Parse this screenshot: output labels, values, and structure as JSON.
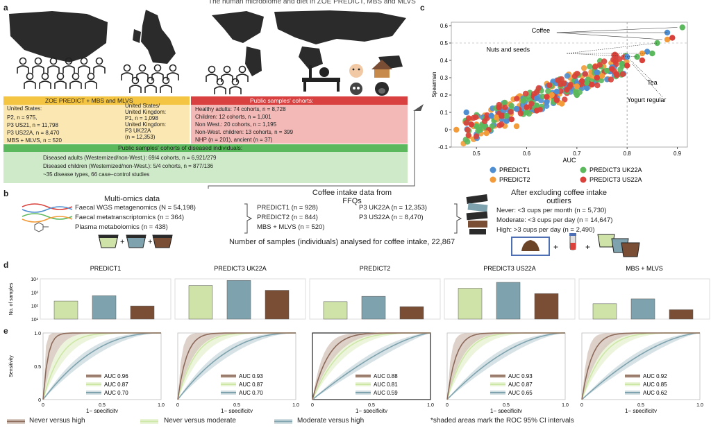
{
  "title": "The human microbiome and diet in ZOE PREDICT, MBS and MLVS",
  "panel_labels": {
    "a": "a",
    "b": "b",
    "c": "c",
    "d": "d",
    "e": "e"
  },
  "panel_a": {
    "zoe_header": "ZOE PREDICT + MBS and MLVS",
    "public_header": "Public samples' cohorts:",
    "zoe_col1": [
      "United States:",
      "P2, n = 975,",
      "P3 US21, n = 11,798",
      "P3 US22A, n = 8,470",
      "MBS + MLVS, n = 520"
    ],
    "zoe_col2": [
      "United States/",
      "United Kingdom:",
      "P1, n = 1,098",
      "United Kingdom:",
      "P3 UK22A",
      "(n = 12,353)"
    ],
    "public_lines": [
      "Healthy adults: 74 cohorts, n = 8,728",
      "Children: 12 cohorts, n = 1,001",
      "Non West.: 20 cohorts, n = 1,195",
      "Non-West. children: 13 cohorts, n = 399",
      "NHP (n = 201), ancient (n = 37)"
    ],
    "diseased_header": "Public samples' cohorts of diseased individuals:",
    "diseased_lines": [
      "Diseased adults (Westernized/non-West.): 69/4 cohorts, n = 6,921/279",
      "Diseased children (Westernized/non-West.): 5/4 cohorts, n = 877/136",
      "~35 disease types, 66 case–control studies"
    ]
  },
  "panel_b": {
    "multiomics_title": "Multi-omics data",
    "multiomics_lines": [
      "Faecal WGS metagenomics (N = 54,198)",
      "Faecal metatranscriptomics (n = 364)",
      "Plasma metabolomics (n = 438)"
    ],
    "ffq_title_1": "Coffee intake data from",
    "ffq_title_2": "FFQs",
    "ffq_col1": [
      "PREDICT1 (n = 928)",
      "PREDICT2 (n = 844)",
      "MBS + MLVS (n = 520)"
    ],
    "ffq_col2": [
      "P3 UK22A (n = 12,353)",
      "P3 US22A (n = 8,470)"
    ],
    "after_title_1": "After excluding coffee intake",
    "after_title_2": "outliers",
    "after_lines": [
      "Never: <3 cups per month (n = 5,730)",
      "Moderate: <3 cups per day (n = 14,647)",
      "High: >3 cups per day (n = 2,490)"
    ],
    "samples_line": "Number of samples (individuals) analysed for coffee intake, 22,867"
  },
  "panel_c": {
    "xlabel": "AUC",
    "ylabel": "Spearman",
    "xticks": [
      "0.5",
      "0.6",
      "0.7",
      "0.8",
      "0.9"
    ],
    "yticks": [
      "-0.1",
      "0",
      "0.1",
      "0.2",
      "0.3",
      "0.4",
      "0.5",
      "0.6"
    ],
    "annotations": [
      "Coffee",
      "Nuts and seeds",
      "Tea",
      "Yogurt regular"
    ],
    "legend": [
      "PREDICT1",
      "PREDICT2",
      "PREDICT3 UK22A",
      "PREDICT3 US22A"
    ],
    "colors": {
      "PREDICT1": "#4f8fd1",
      "PREDICT2": "#f29b38",
      "PREDICT3 UK22A": "#5cb85c",
      "PREDICT3 US22A": "#d9413a"
    }
  },
  "chart_data": [
    {
      "type": "scatter",
      "panel": "c",
      "xlabel": "AUC",
      "ylabel": "Spearman",
      "xlim": [
        0.45,
        0.92
      ],
      "ylim": [
        -0.1,
        0.62
      ],
      "series": [
        {
          "name": "PREDICT1",
          "points": [
            [
              0.48,
              0.1
            ],
            [
              0.53,
              0.08
            ],
            [
              0.58,
              0.12
            ],
            [
              0.62,
              0.18
            ],
            [
              0.66,
              0.22
            ],
            [
              0.7,
              0.27
            ],
            [
              0.74,
              0.33
            ],
            [
              0.77,
              0.36
            ],
            [
              0.8,
              0.42
            ],
            [
              0.84,
              0.45
            ],
            [
              0.88,
              0.56
            ],
            [
              0.56,
              0.05
            ],
            [
              0.64,
              0.16
            ],
            [
              0.72,
              0.24
            ]
          ]
        },
        {
          "name": "PREDICT2",
          "points": [
            [
              0.46,
              0.0
            ],
            [
              0.5,
              0.03
            ],
            [
              0.54,
              0.07
            ],
            [
              0.6,
              0.12
            ],
            [
              0.65,
              0.2
            ],
            [
              0.7,
              0.25
            ],
            [
              0.75,
              0.31
            ],
            [
              0.8,
              0.37
            ],
            [
              0.83,
              0.44
            ],
            [
              0.88,
              0.52
            ],
            [
              0.52,
              -0.02
            ],
            [
              0.58,
              0.02
            ],
            [
              0.67,
              0.15
            ]
          ]
        },
        {
          "name": "PREDICT3 UK22A",
          "points": [
            [
              0.5,
              0.02
            ],
            [
              0.56,
              0.08
            ],
            [
              0.62,
              0.14
            ],
            [
              0.68,
              0.22
            ],
            [
              0.72,
              0.27
            ],
            [
              0.76,
              0.34
            ],
            [
              0.79,
              0.38
            ],
            [
              0.82,
              0.42
            ],
            [
              0.85,
              0.44
            ],
            [
              0.86,
              0.5
            ],
            [
              0.91,
              0.59
            ],
            [
              0.6,
              0.1
            ],
            [
              0.7,
              0.2
            ]
          ]
        },
        {
          "name": "PREDICT3 US22A",
          "points": [
            [
              0.49,
              0.03
            ],
            [
              0.55,
              0.08
            ],
            [
              0.6,
              0.13
            ],
            [
              0.64,
              0.19
            ],
            [
              0.68,
              0.23
            ],
            [
              0.71,
              0.28
            ],
            [
              0.74,
              0.3
            ],
            [
              0.77,
              0.35
            ],
            [
              0.8,
              0.37
            ],
            [
              0.83,
              0.4
            ],
            [
              0.89,
              0.53
            ],
            [
              0.62,
              0.11
            ],
            [
              0.66,
              0.17
            ],
            [
              0.73,
              0.26
            ],
            [
              0.57,
              0.06
            ]
          ]
        }
      ]
    },
    {
      "type": "bar",
      "panel": "d",
      "ylabel": "No. of samples",
      "yscale": "log",
      "ylim": [
        10,
        10000
      ],
      "yticks": [
        "10⁴",
        "10³",
        "10²",
        "10¹"
      ],
      "groups": [
        {
          "name": "PREDICT1",
          "values": [
            220,
            560,
            95
          ]
        },
        {
          "name": "PREDICT3 UK22A",
          "values": [
            3200,
            7600,
            1400
          ]
        },
        {
          "name": "PREDICT2",
          "values": [
            200,
            500,
            85
          ]
        },
        {
          "name": "PREDICT3 US22A",
          "values": [
            2000,
            5500,
            800
          ]
        },
        {
          "name": "MBS + MLVS",
          "values": [
            140,
            320,
            50
          ]
        }
      ],
      "categories": [
        "Never",
        "Moderate",
        "High"
      ],
      "colors": [
        "#cfe3a8",
        "#7fa3ae",
        "#7a4e35"
      ]
    },
    {
      "type": "line",
      "panel": "e",
      "xlabel": "1− specificity",
      "ylabel": "Sensitivity",
      "xticks": [
        "0",
        "0.5",
        "1.0"
      ],
      "yticks": [
        "0",
        "0.5",
        "1.0"
      ],
      "series_names": [
        "Never versus high",
        "Never versus moderate",
        "Moderate versus high"
      ],
      "colors": [
        "#8c6a5a",
        "#cde7a6",
        "#7fa3ae"
      ],
      "band_colors": [
        "#d8c9c0",
        "#e9f3d6",
        "#cfdde0"
      ],
      "panels": [
        {
          "auc": [
            "AUC 0.96",
            "AUC 0.87",
            "AUC 0.70"
          ],
          "values": [
            0.96,
            0.87,
            0.7
          ]
        },
        {
          "auc": [
            "AUC 0.93",
            "AUC 0.87",
            "AUC 0.70"
          ],
          "values": [
            0.93,
            0.87,
            0.7
          ]
        },
        {
          "auc": [
            "AUC 0.88",
            "AUC 0.81",
            "AUC 0.59"
          ],
          "values": [
            0.88,
            0.81,
            0.59
          ]
        },
        {
          "auc": [
            "AUC 0.93",
            "AUC 0.87",
            "AUC 0.65"
          ],
          "values": [
            0.93,
            0.87,
            0.65
          ]
        },
        {
          "auc": [
            "AUC 0.92",
            "AUC 0.85",
            "AUC 0.62"
          ],
          "values": [
            0.92,
            0.85,
            0.62
          ]
        }
      ]
    }
  ],
  "legend_bottom": {
    "items": [
      "Never versus high",
      "Never versus moderate",
      "Moderate versus high"
    ],
    "note": "*shaded areas mark the ROC 95% CI intervals"
  }
}
